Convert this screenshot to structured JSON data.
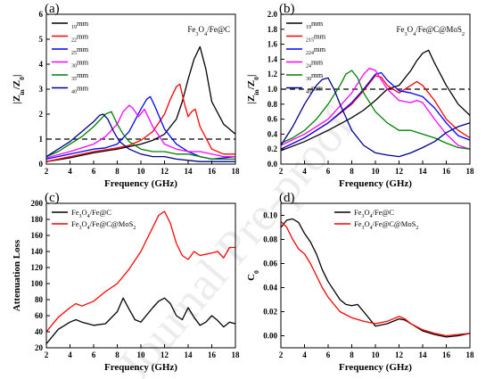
{
  "watermark": "Journal Pre-proof",
  "chart_data": [
    {
      "panel": "(a)",
      "type": "line",
      "annotation": "Fe3O4/Fe@C",
      "xlabel": "Frequency (GHz)",
      "ylabel": "|Zin/Z0|",
      "xlim": [
        2,
        18
      ],
      "ylim": [
        0,
        6
      ],
      "xticks": [
        2,
        4,
        6,
        8,
        10,
        12,
        14,
        16,
        18
      ],
      "yticks": [
        0,
        1,
        2,
        3,
        4,
        5,
        6
      ],
      "reference_line": 1,
      "legend_position": "top-left",
      "grid": false,
      "series": [
        {
          "name": "1.9mm",
          "color": "#000000",
          "x": [
            2,
            4,
            6,
            8,
            9,
            10,
            11,
            12,
            13,
            13.5,
            14,
            14.5,
            15,
            15.5,
            16,
            17,
            18
          ],
          "y": [
            0.1,
            0.25,
            0.45,
            0.6,
            0.7,
            0.8,
            0.95,
            1.2,
            1.8,
            2.5,
            3.4,
            4.2,
            4.7,
            3.8,
            2.5,
            1.6,
            1.2
          ]
        },
        {
          "name": "2.2mm",
          "color": "#ff0000",
          "x": [
            2,
            4,
            6,
            8,
            9,
            10,
            11,
            12,
            12.5,
            13,
            13.3,
            13.7,
            14,
            14.3,
            14.6,
            15,
            16,
            17,
            18
          ],
          "y": [
            0.1,
            0.3,
            0.5,
            0.65,
            0.75,
            0.95,
            1.3,
            2,
            2.6,
            3.1,
            3.2,
            2.4,
            1.9,
            2.1,
            2.2,
            1.5,
            0.6,
            0.4,
            0.4
          ]
        },
        {
          "name": "2.5mm",
          "color": "#0000ff",
          "x": [
            2,
            4,
            6,
            7,
            8,
            9,
            10,
            10.5,
            10.8,
            11.2,
            12,
            13,
            14,
            15,
            16,
            17,
            18
          ],
          "y": [
            0.2,
            0.4,
            0.6,
            0.65,
            0.8,
            1.3,
            2.2,
            2.6,
            2.7,
            2.3,
            1.4,
            0.8,
            0.5,
            0.3,
            0.2,
            0.25,
            0.3
          ]
        },
        {
          "name": "3.0mm",
          "color": "#ff00ff",
          "x": [
            2,
            4,
            6,
            7,
            8,
            8.5,
            9,
            9.3,
            9.8,
            10.3,
            11,
            12,
            13,
            14,
            15,
            16,
            17,
            18
          ],
          "y": [
            0.25,
            0.5,
            0.8,
            1.1,
            1.6,
            2.1,
            2.35,
            2.25,
            1.9,
            2.2,
            1.5,
            0.8,
            0.6,
            0.5,
            0.5,
            0.4,
            0.3,
            0.3
          ]
        },
        {
          "name": "3.5mm",
          "color": "#008000",
          "x": [
            2,
            3,
            4,
            5,
            6,
            7,
            7.5,
            8,
            8.5,
            9,
            10,
            11,
            12,
            13,
            14,
            15,
            16,
            17,
            18
          ],
          "y": [
            0.3,
            0.5,
            0.8,
            1.1,
            1.5,
            2,
            2.1,
            1.6,
            1.2,
            0.9,
            0.6,
            0.5,
            0.5,
            0.4,
            0.4,
            0.3,
            0.2,
            0.2,
            0.2
          ]
        },
        {
          "name": "4.0mm",
          "color": "#00008b",
          "x": [
            2,
            3,
            4,
            5,
            6,
            6.5,
            6.8,
            7.2,
            7.7,
            8.2,
            9,
            10,
            11,
            12,
            13,
            14,
            15,
            16,
            17,
            18
          ],
          "y": [
            0.3,
            0.6,
            0.9,
            1.3,
            1.7,
            1.95,
            2,
            1.8,
            1.3,
            0.9,
            0.6,
            0.4,
            0.3,
            0.3,
            0.2,
            0.15,
            0.1,
            0.1,
            0.1,
            0.1
          ]
        }
      ]
    },
    {
      "panel": "(b)",
      "type": "line",
      "annotation": "Fe3O4/Fe@C@MoS2",
      "xlabel": "Frequency (GHz)",
      "ylabel": "|Zin/Z0|",
      "xlim": [
        2,
        18
      ],
      "ylim": [
        0,
        2.0
      ],
      "xticks": [
        2,
        4,
        6,
        8,
        10,
        12,
        14,
        16,
        18
      ],
      "yticks": [
        0,
        0.2,
        0.4,
        0.6,
        0.8,
        1.0,
        1.2,
        1.4,
        1.6,
        1.8,
        2.0
      ],
      "reference_line": 1.0,
      "legend_position": "top-left",
      "grid": false,
      "series": [
        {
          "name": "1.9mm",
          "color": "#000000",
          "x": [
            2,
            4,
            6,
            8,
            9,
            10,
            11,
            12,
            13,
            13.5,
            14,
            14.5,
            15,
            16,
            17,
            18
          ],
          "y": [
            0.18,
            0.3,
            0.45,
            0.62,
            0.72,
            0.85,
            1.0,
            1.05,
            1.25,
            1.38,
            1.48,
            1.52,
            1.35,
            1.05,
            0.8,
            0.65
          ]
        },
        {
          "name": "2.15mm",
          "color": "#ff0000",
          "x": [
            2,
            4,
            6,
            8,
            9,
            10,
            10.5,
            11,
            12,
            13,
            13.5,
            14,
            15,
            16,
            17,
            18
          ],
          "y": [
            0.2,
            0.35,
            0.55,
            0.8,
            0.98,
            1.18,
            1.16,
            1.05,
            0.95,
            1.05,
            1.1,
            1.05,
            0.85,
            0.6,
            0.45,
            0.35
          ]
        },
        {
          "name": "2.24mm",
          "color": "#0000ff",
          "x": [
            2,
            4,
            6,
            8,
            9,
            10,
            10.5,
            11,
            12,
            13,
            14,
            15,
            16,
            17,
            18
          ],
          "y": [
            0.2,
            0.35,
            0.55,
            0.82,
            1.0,
            1.2,
            1.22,
            1.12,
            0.98,
            0.95,
            0.9,
            0.75,
            0.55,
            0.38,
            0.32
          ]
        },
        {
          "name": "2.4mm",
          "color": "#ff00ff",
          "x": [
            2,
            4,
            6,
            8,
            9,
            9.5,
            10,
            11,
            12,
            13,
            13.5,
            14,
            15,
            16,
            17,
            18
          ],
          "y": [
            0.25,
            0.4,
            0.6,
            0.95,
            1.2,
            1.28,
            1.25,
            1.0,
            0.85,
            0.82,
            0.85,
            0.82,
            0.6,
            0.4,
            0.25,
            0.2
          ]
        },
        {
          "name": "3.0mm",
          "color": "#008000",
          "x": [
            2,
            3,
            4,
            5,
            6,
            7,
            7.5,
            8,
            8.5,
            9,
            10,
            11,
            12,
            13,
            14,
            15,
            16,
            17,
            18
          ],
          "y": [
            0.28,
            0.35,
            0.45,
            0.6,
            0.8,
            1.05,
            1.2,
            1.25,
            1.15,
            0.95,
            0.7,
            0.55,
            0.45,
            0.45,
            0.4,
            0.35,
            0.28,
            0.22,
            0.2
          ]
        },
        {
          "name": "4.0mm",
          "color": "#00008b",
          "x": [
            2,
            3,
            4,
            5,
            5.5,
            6,
            6.5,
            7,
            8,
            9,
            10,
            11,
            12,
            13,
            14,
            15,
            16,
            17,
            18
          ],
          "y": [
            0.25,
            0.5,
            0.8,
            1.05,
            1.13,
            1.15,
            1.0,
            0.8,
            0.45,
            0.25,
            0.15,
            0.12,
            0.1,
            0.15,
            0.22,
            0.3,
            0.42,
            0.5,
            0.55
          ]
        }
      ]
    },
    {
      "panel": "(c)",
      "type": "line",
      "xlabel": "Frequency (GHz)",
      "ylabel": "Attenuation Loss",
      "xlim": [
        2,
        18
      ],
      "ylim": [
        20,
        200
      ],
      "xticks": [
        2,
        4,
        6,
        8,
        10,
        12,
        14,
        16,
        18
      ],
      "yticks": [
        20,
        40,
        60,
        80,
        100,
        120,
        140,
        160,
        180,
        200
      ],
      "legend_position": "top-left",
      "grid": false,
      "series": [
        {
          "name": "Fe3O4/Fe@C",
          "color": "#000000",
          "x": [
            2,
            3,
            4,
            4.5,
            5,
            6,
            7,
            8,
            8.5,
            9,
            9.5,
            10,
            11,
            11.5,
            12,
            12.5,
            13,
            13.5,
            14,
            14.5,
            15,
            15.5,
            16,
            16.5,
            17,
            17.5,
            18
          ],
          "y": [
            25,
            43,
            52,
            55,
            52,
            48,
            50,
            65,
            82,
            68,
            55,
            52,
            70,
            78,
            82,
            75,
            60,
            55,
            70,
            58,
            48,
            52,
            60,
            54,
            46,
            52,
            50
          ]
        },
        {
          "name": "Fe3O4/Fe@C@MoS2",
          "color": "#ff0000",
          "x": [
            2,
            3,
            4,
            4.5,
            5,
            6,
            7,
            8,
            9,
            10,
            10.5,
            11,
            11.5,
            12,
            12.5,
            13,
            13.5,
            14,
            14.5,
            15,
            16,
            16.5,
            17,
            17.5,
            18
          ],
          "y": [
            40,
            58,
            70,
            75,
            72,
            78,
            90,
            100,
            118,
            140,
            155,
            170,
            185,
            190,
            175,
            150,
            135,
            130,
            140,
            135,
            138,
            140,
            132,
            145,
            145
          ]
        }
      ]
    },
    {
      "panel": "(d)",
      "type": "line",
      "xlabel": "Frequency (GHz)",
      "ylabel": "C0",
      "xlim": [
        2,
        18
      ],
      "ylim": [
        -0.01,
        0.11
      ],
      "xticks": [
        2,
        4,
        6,
        8,
        10,
        12,
        14,
        16,
        18
      ],
      "yticks": [
        0.0,
        0.02,
        0.04,
        0.06,
        0.08,
        0.1
      ],
      "legend_position": "top-right",
      "grid": false,
      "series": [
        {
          "name": "Fe3O4/Fe@C",
          "color": "#000000",
          "x": [
            2,
            2.5,
            3,
            3.5,
            4,
            4.5,
            5,
            5.5,
            6,
            7,
            7.5,
            8,
            8.5,
            9,
            10,
            11,
            12,
            12.5,
            13,
            14,
            15,
            16,
            17,
            18
          ],
          "y": [
            0.09,
            0.096,
            0.097,
            0.094,
            0.085,
            0.078,
            0.068,
            0.055,
            0.045,
            0.03,
            0.026,
            0.025,
            0.026,
            0.02,
            0.008,
            0.01,
            0.014,
            0.013,
            0.01,
            0.004,
            0.001,
            -0.001,
            0.0,
            0.002
          ]
        },
        {
          "name": "Fe3O4/Fe@C@MoS2",
          "color": "#ff0000",
          "x": [
            2,
            2.5,
            3,
            3.5,
            4,
            4.5,
            5,
            5.5,
            6,
            7,
            8,
            9,
            10,
            11,
            12,
            12.5,
            13,
            14,
            15,
            16,
            17,
            18
          ],
          "y": [
            0.095,
            0.09,
            0.08,
            0.072,
            0.068,
            0.06,
            0.05,
            0.04,
            0.032,
            0.02,
            0.015,
            0.012,
            0.01,
            0.012,
            0.016,
            0.014,
            0.01,
            0.005,
            0.002,
            0.0,
            0.001,
            0.002
          ]
        }
      ]
    }
  ]
}
